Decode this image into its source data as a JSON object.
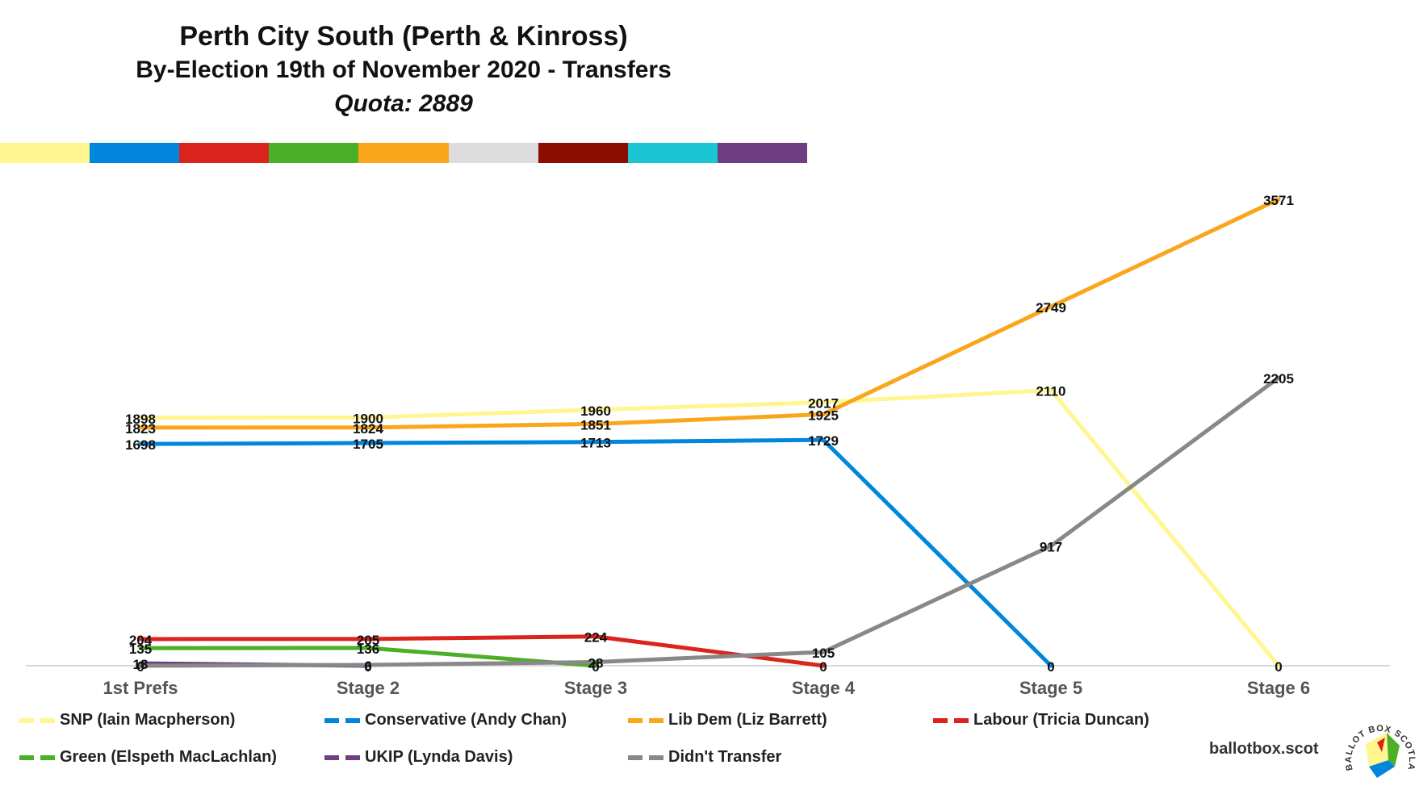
{
  "header": {
    "title": "Perth City South (Perth & Kinross)",
    "subtitle": "By-Election 19th of November 2020 - Transfers",
    "quota": "Quota: 2889"
  },
  "color_strip": [
    "#FFF68F",
    "#0087DC",
    "#DC241F",
    "#4CAF28",
    "#FAA61A",
    "#DDDDDD",
    "#8B0F00",
    "#1BC5D3",
    "#6D3E82"
  ],
  "chart_data": {
    "type": "line",
    "categories": [
      "1st Prefs",
      "Stage 2",
      "Stage 3",
      "Stage 4",
      "Stage 5",
      "Stage 6"
    ],
    "ylim": [
      0,
      3700
    ],
    "grid": false,
    "legend_position": "bottom",
    "series": [
      {
        "name": "SNP (Iain Macpherson)",
        "color": "#FFF68F",
        "values": [
          1898,
          1900,
          1960,
          2017,
          2110,
          0
        ]
      },
      {
        "name": "Conservative (Andy Chan)",
        "color": "#0087DC",
        "values": [
          1698,
          1705,
          1713,
          1729,
          0,
          null
        ]
      },
      {
        "name": "Lib Dem (Liz Barrett)",
        "color": "#FAA61A",
        "values": [
          1823,
          1824,
          1851,
          1925,
          2749,
          3571
        ]
      },
      {
        "name": "Labour (Tricia Duncan)",
        "color": "#DC241F",
        "values": [
          204,
          205,
          224,
          0,
          null,
          null
        ]
      },
      {
        "name": "Green (Elspeth MacLachlan)",
        "color": "#4CAF28",
        "values": [
          135,
          136,
          0,
          null,
          null,
          null
        ]
      },
      {
        "name": "UKIP (Lynda Davis)",
        "color": "#6D3E82",
        "values": [
          18,
          0,
          null,
          null,
          null,
          null
        ]
      },
      {
        "name": "Didn't Transfer",
        "color": "#888888",
        "values": [
          0,
          6,
          28,
          105,
          917,
          2205
        ]
      }
    ]
  },
  "brand": "ballotbox.scot",
  "logo_text": "BALLOT BOX SCOTLAND"
}
